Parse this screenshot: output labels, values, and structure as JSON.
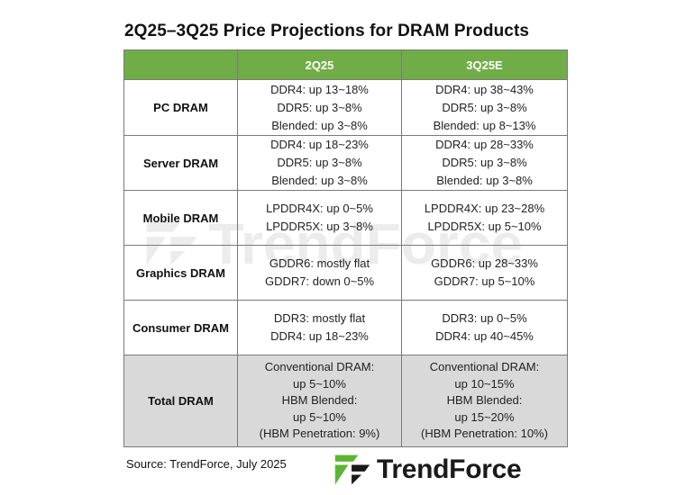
{
  "title": "2Q25–3Q25 Price Projections  for DRAM Products",
  "table": {
    "headers": [
      "",
      "2Q25",
      "3Q25E"
    ],
    "rows": [
      {
        "category": "PC DRAM",
        "q2": [
          "DDR4: up 13~18%",
          "DDR5: up 3~8%",
          "Blended: up 3~8%"
        ],
        "q3": [
          "DDR4: up 38~43%",
          "DDR5: up 3~8%",
          "Blended: up 8~13%"
        ]
      },
      {
        "category": "Server DRAM",
        "q2": [
          "DDR4: up 18~23%",
          "DDR5: up 3~8%",
          "Blended: up 3~8%"
        ],
        "q3": [
          "DDR4: up 28~33%",
          "DDR5: up 3~8%",
          "Blended: up 3~8%"
        ]
      },
      {
        "category": "Mobile DRAM",
        "q2": [
          "LPDDR4X: up 0~5%",
          "LPDDR5X: up 3~8%"
        ],
        "q3": [
          "LPDDR4X: up 23~28%",
          "LPDDR5X: up 5~10%"
        ]
      },
      {
        "category": "Graphics DRAM",
        "q2": [
          "GDDR6: mostly flat",
          "GDDR7: down 0~5%"
        ],
        "q3": [
          "GDDR6: up 28~33%",
          "GDDR7: up 5~10%"
        ]
      },
      {
        "category": "Consumer DRAM",
        "q2": [
          "DDR3: mostly flat",
          "DDR4: up 18~23%"
        ],
        "q3": [
          "DDR3: up 0~5%",
          "DDR4: up 40~45%"
        ]
      },
      {
        "category": "Total DRAM",
        "q2": [
          "Conventional DRAM:",
          "up 5~10%",
          "HBM Blended:",
          "up 5~10%",
          "(HBM Penetration: 9%)"
        ],
        "q3": [
          "Conventional DRAM:",
          "up 10~15%",
          "HBM Blended:",
          "up 15~20%",
          "(HBM Penetration: 10%)"
        ]
      }
    ]
  },
  "source": "Source: TrendForce, July 2025",
  "logo": {
    "text": "TrendForce",
    "icon": "trendforce-logo-icon",
    "colors": {
      "green": "#5cb531",
      "dark": "#1a1a1a"
    }
  },
  "watermark_text": "TrendForce",
  "colors": {
    "header_green": "#70ad47",
    "total_row_gray": "#d9d9d9",
    "border": "#7a7a7a"
  }
}
